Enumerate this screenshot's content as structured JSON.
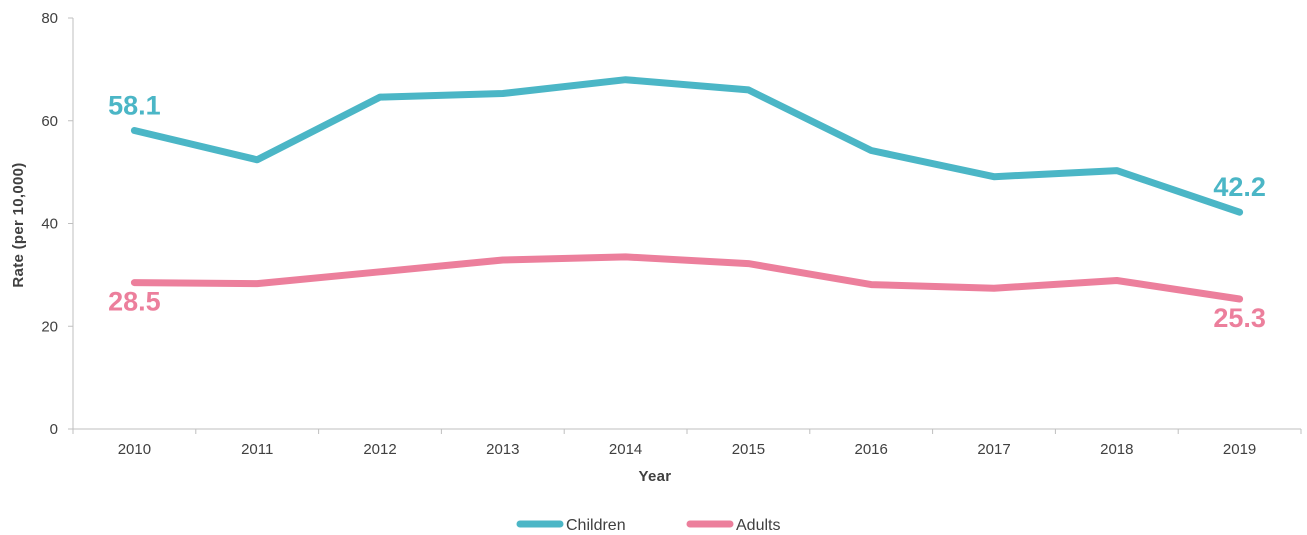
{
  "chart_data": {
    "type": "line",
    "title": "",
    "xlabel": "Year",
    "ylabel": "Rate (per 10,000)",
    "categories": [
      "2010",
      "2011",
      "2012",
      "2013",
      "2014",
      "2015",
      "2016",
      "2017",
      "2018",
      "2019"
    ],
    "yticks": [
      "0",
      "20",
      "40",
      "60",
      "80"
    ],
    "ylim": [
      0,
      80
    ],
    "grid": false,
    "legend_position": "bottom",
    "series": [
      {
        "name": "Children",
        "color": "#4bb6c6",
        "values": [
          58.1,
          52.4,
          64.6,
          65.3,
          68.0,
          66.0,
          54.2,
          49.1,
          50.3,
          42.2
        ],
        "labels": [
          {
            "index": 0,
            "text": "58.1"
          },
          {
            "index": 9,
            "text": "42.2"
          }
        ]
      },
      {
        "name": "Adults",
        "color": "#ec7f9c",
        "values": [
          28.5,
          28.3,
          30.6,
          32.9,
          33.5,
          32.2,
          28.1,
          27.4,
          28.9,
          25.3
        ],
        "labels": [
          {
            "index": 0,
            "text": "28.5"
          },
          {
            "index": 9,
            "text": "25.3"
          }
        ]
      }
    ]
  }
}
